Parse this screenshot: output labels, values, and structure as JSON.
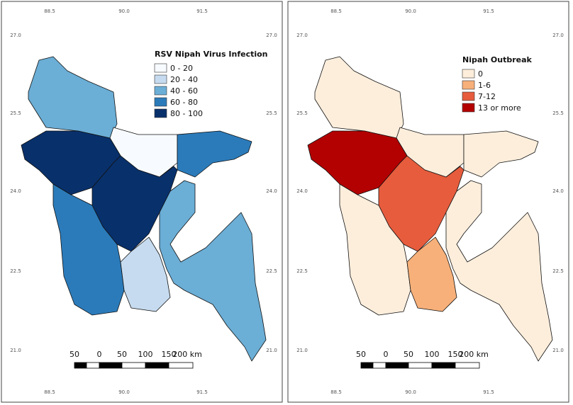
{
  "maps": [
    {
      "legend": {
        "title": "RSV Nipah Virus Infection",
        "items": [
          {
            "label": "0 - 20",
            "color": "#f7fbff"
          },
          {
            "label": "20 - 40",
            "color": "#c6dbef"
          },
          {
            "label": "40 - 60",
            "color": "#6baed6"
          },
          {
            "label": "60 - 80",
            "color": "#2b7bba"
          },
          {
            "label": "80 - 100",
            "color": "#08306b"
          }
        ]
      },
      "top_ticks": [
        "88.5",
        "90.0",
        "91.5"
      ],
      "bottom_ticks": [
        "88.5",
        "90.0",
        "91.5"
      ],
      "left_ticks": [
        "27.0",
        "25.5",
        "24.0",
        "22.5",
        "21.0"
      ],
      "right_ticks": [
        "27.0",
        "25.5",
        "24.0",
        "22.5",
        "21.0"
      ],
      "scale_bar": [
        "50",
        "0",
        "50",
        "100",
        "150",
        "200 km"
      ]
    },
    {
      "legend": {
        "title": "Nipah Outbreak",
        "items": [
          {
            "label": "0",
            "color": "#fdeedc"
          },
          {
            "label": "1-6",
            "color": "#f7b07a"
          },
          {
            "label": "7-12",
            "color": "#e65c3d"
          },
          {
            "label": "13 or more",
            "color": "#b30000"
          }
        ]
      },
      "top_ticks": [
        "88.5",
        "90.0",
        "91.5"
      ],
      "bottom_ticks": [
        "88.5",
        "90.0",
        "91.5"
      ],
      "left_ticks": [
        "27.0",
        "25.5",
        "24.0",
        "22.5",
        "21.0"
      ],
      "right_ticks": [
        "27.0",
        "25.5",
        "24.0",
        "22.5",
        "21.0"
      ],
      "scale_bar": [
        "50",
        "0",
        "50",
        "100",
        "150",
        "200 km"
      ]
    }
  ]
}
